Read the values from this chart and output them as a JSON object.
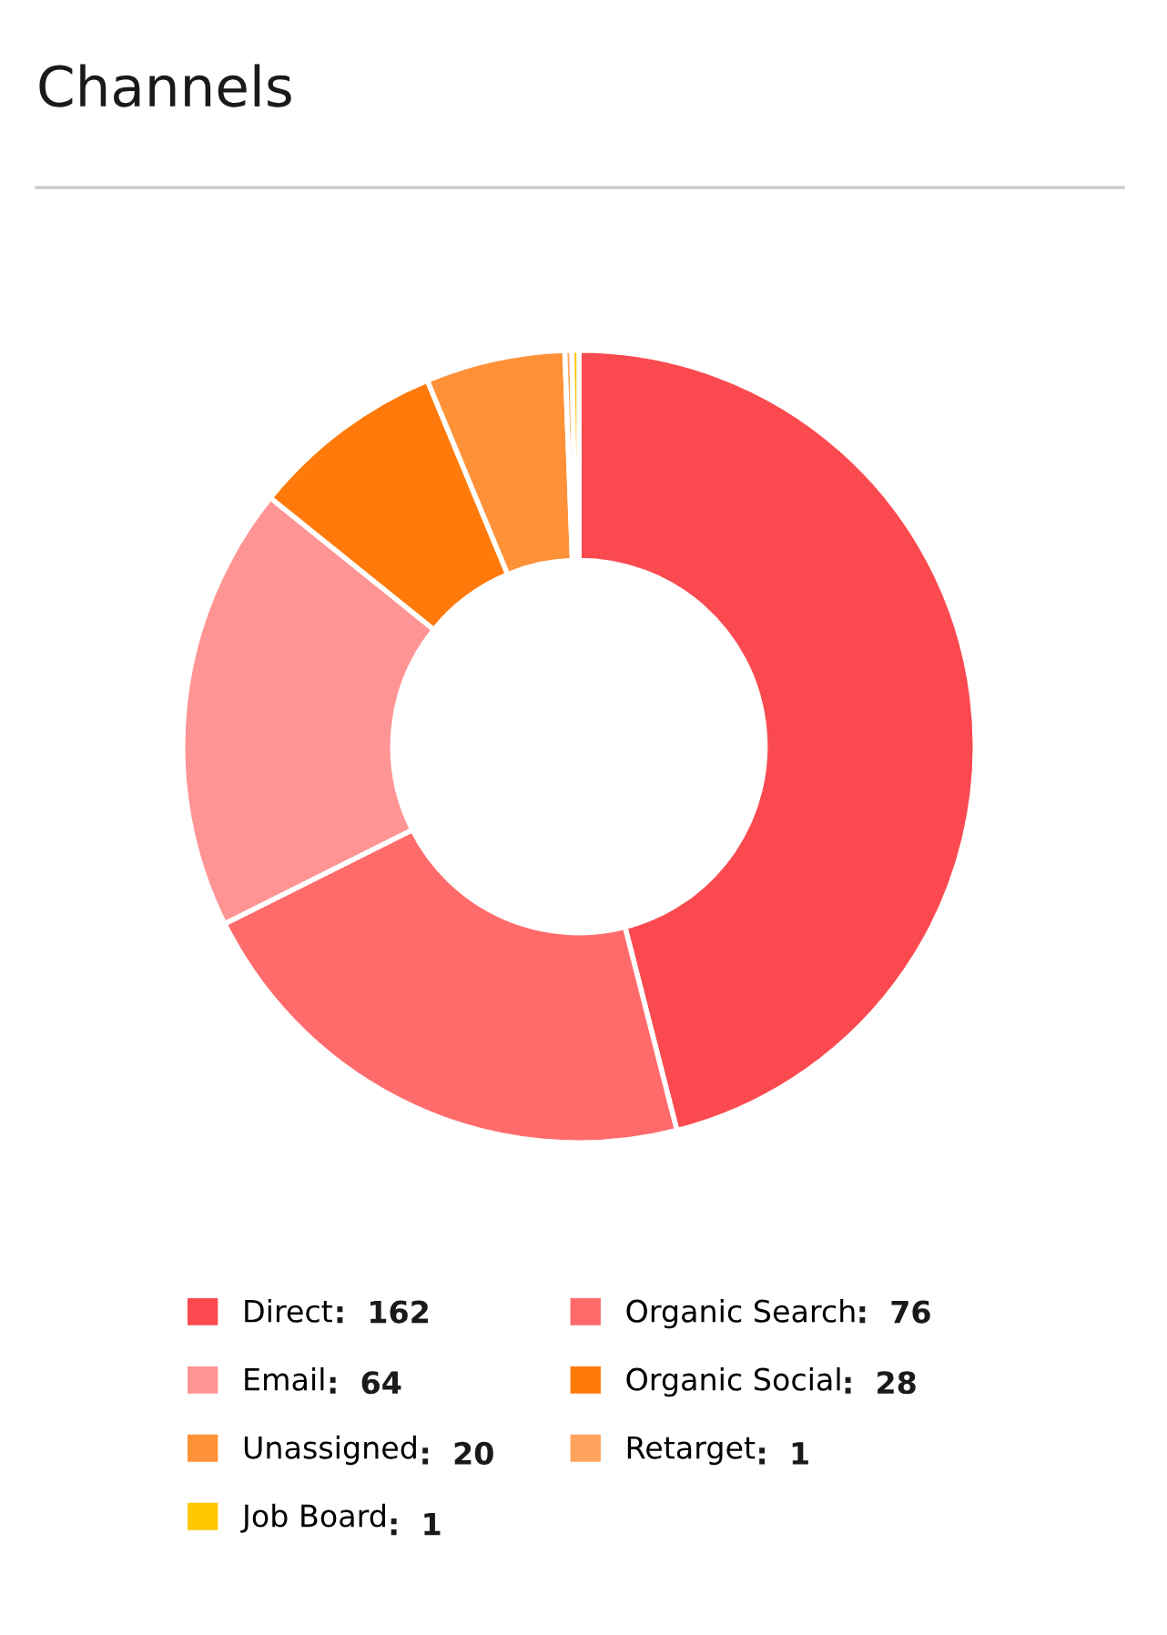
{
  "chart_data": {
    "type": "donut",
    "title": "Channels",
    "categories": [
      "Direct",
      "Organic Search",
      "Email",
      "Organic Social",
      "Unassigned",
      "Retarget",
      "Job Board"
    ],
    "values": [
      162,
      76,
      64,
      28,
      20,
      1,
      1
    ],
    "colors": [
      "#fa4a4f",
      "#ff6b6b",
      "#ff9494",
      "#ff7a0a",
      "#ff9138",
      "#ffa35c",
      "#ffc800"
    ],
    "legend": "bottom",
    "value_labels": [
      ":  162",
      ":  76",
      ":  64",
      ":  28",
      ":  20",
      ":  1",
      ":  1"
    ]
  }
}
